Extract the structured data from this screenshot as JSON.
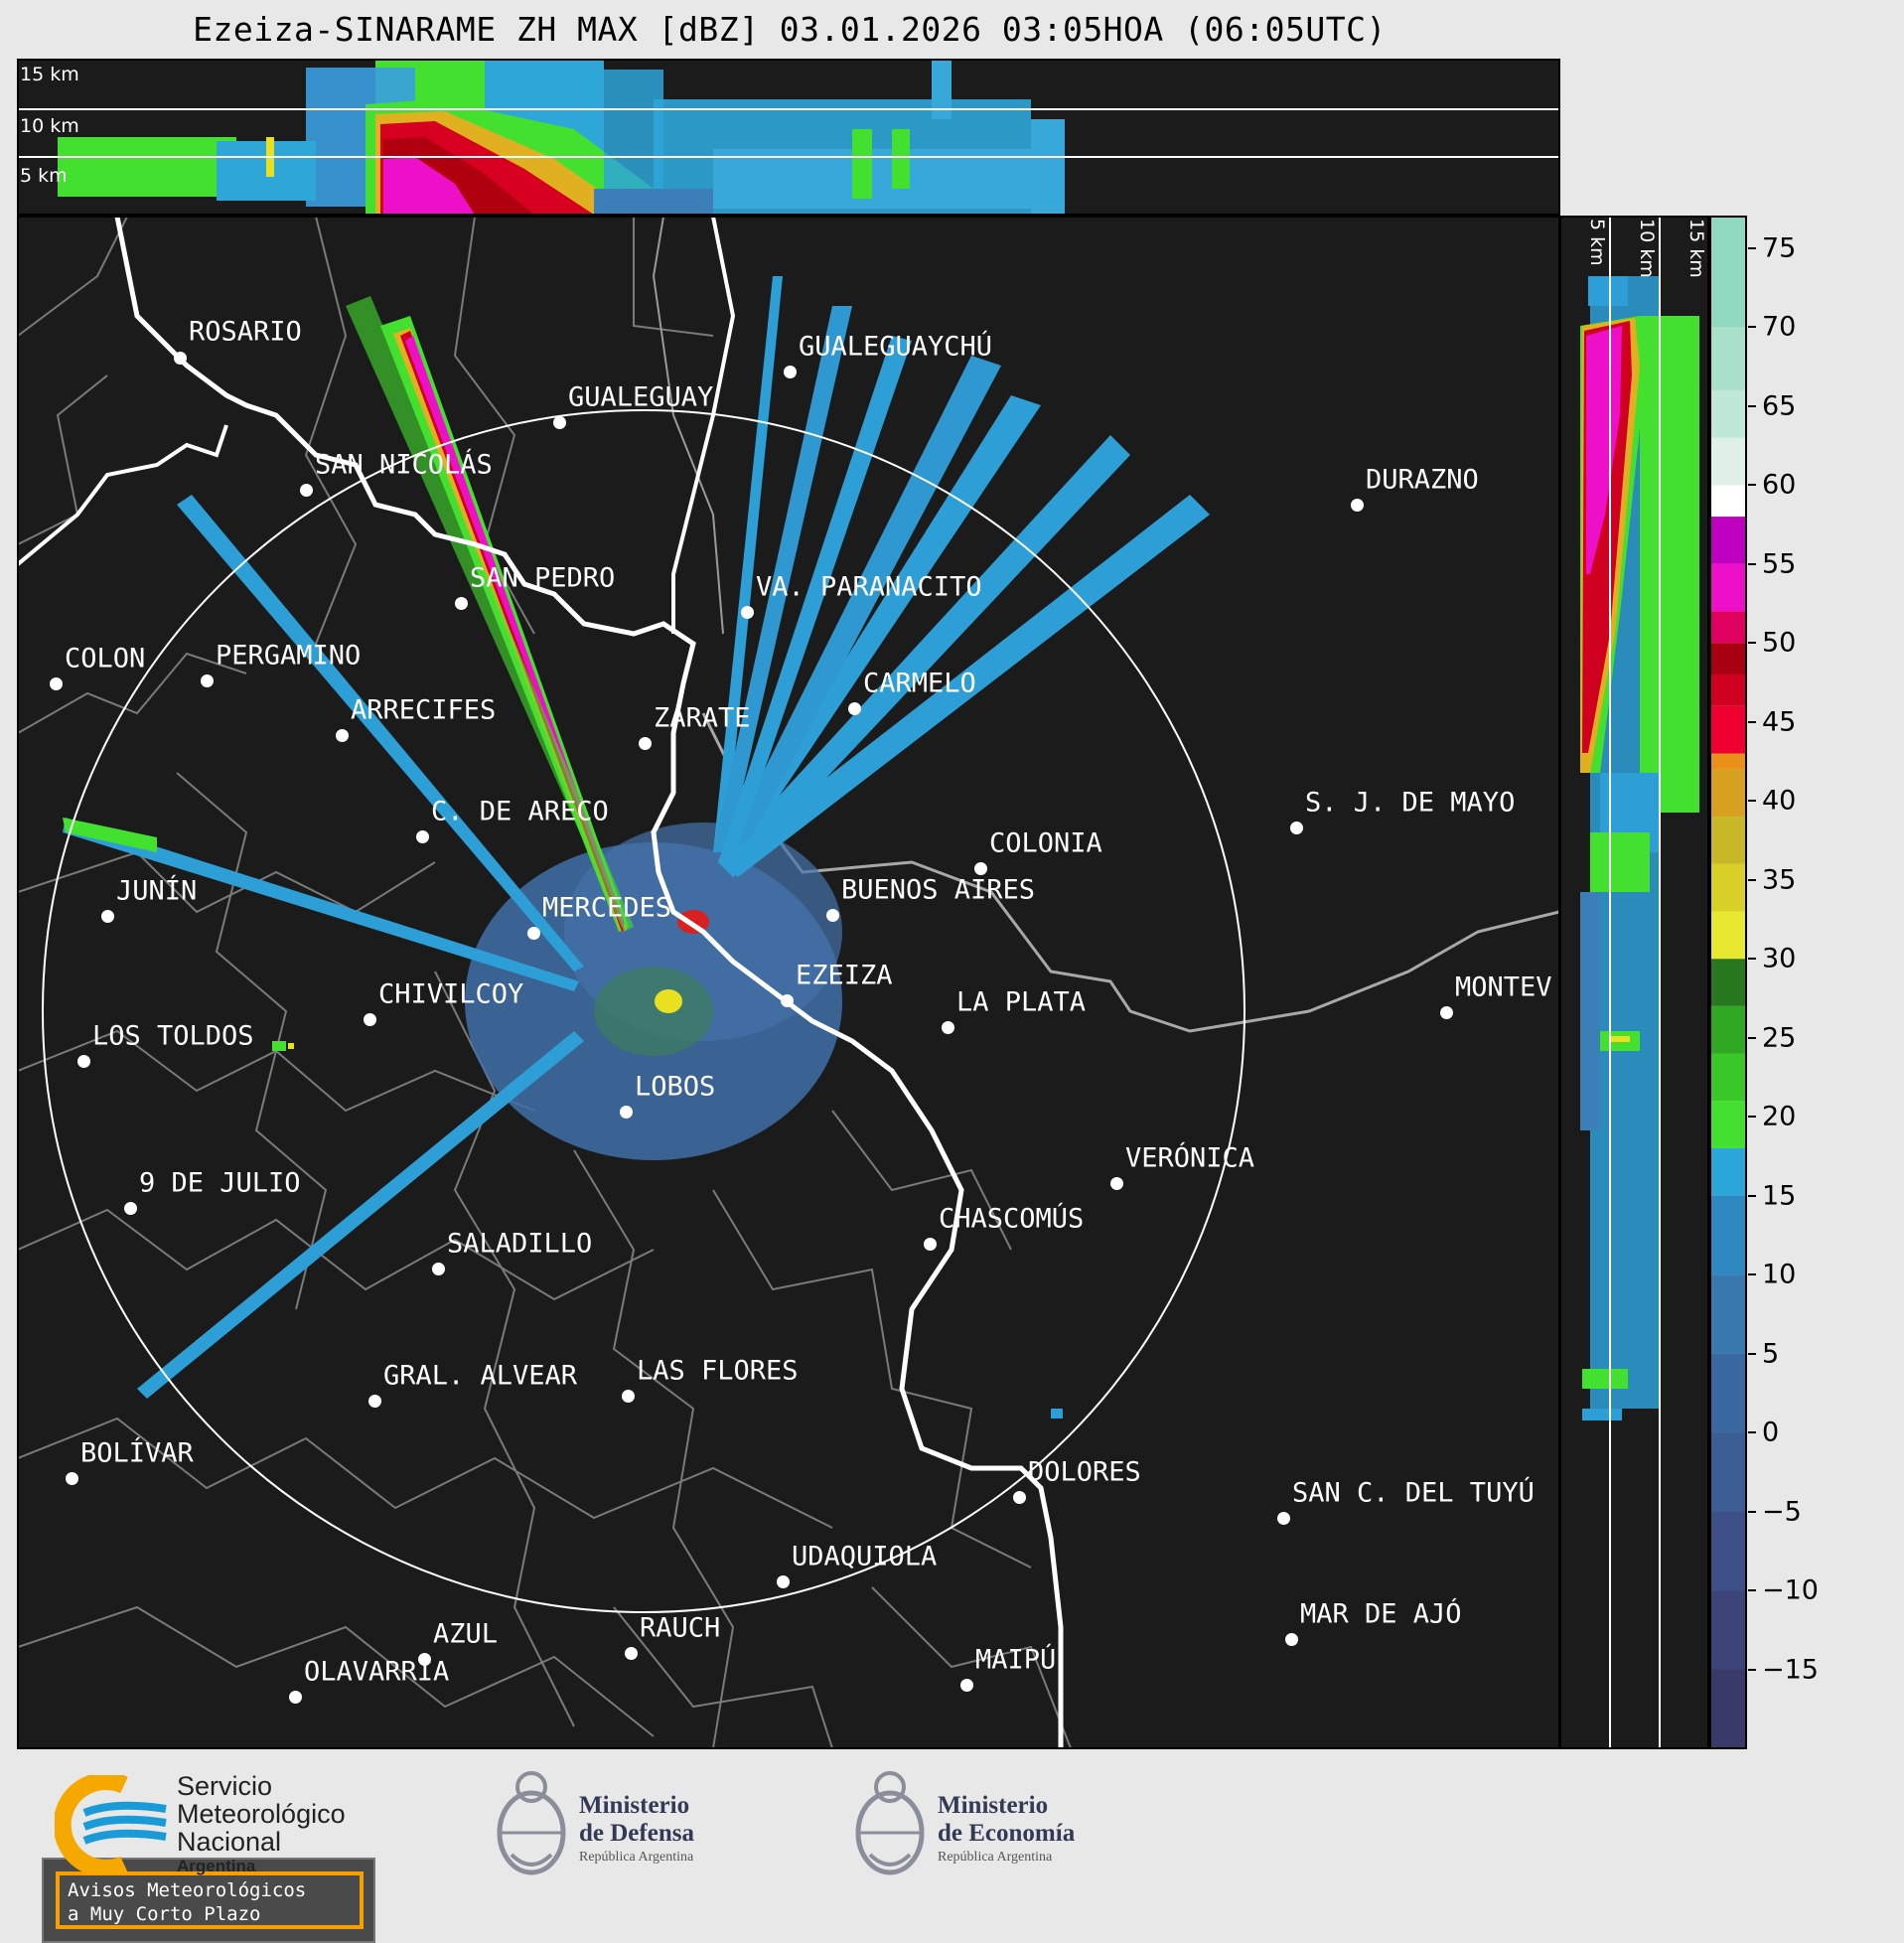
{
  "title": "Ezeiza-SINARAME ZH MAX [dBZ] 03.01.2026 03:05HOA (06:05UTC)",
  "top_panel": {
    "altitude_labels": [
      "15 km",
      "10 km",
      "5 km"
    ]
  },
  "side_panel": {
    "altitude_labels": [
      "5 km",
      "10 km",
      "15 km"
    ]
  },
  "colorbar": {
    "unit": "dBZ",
    "ticks": [
      "75",
      "70",
      "65",
      "60",
      "55",
      "50",
      "45",
      "40",
      "35",
      "30",
      "25",
      "20",
      "15",
      "10",
      "5",
      "0",
      "−5",
      "−10",
      "−15"
    ],
    "tick_values": [
      75,
      70,
      65,
      60,
      55,
      50,
      45,
      40,
      35,
      30,
      25,
      20,
      15,
      10,
      5,
      0,
      -5,
      -10,
      -15
    ],
    "range": [
      -20,
      77
    ]
  },
  "cities": [
    {
      "name": "ROSARIO"
    },
    {
      "name": "GUALEGUAYCHÚ"
    },
    {
      "name": "GUALEGUAY"
    },
    {
      "name": "SAN NICOLÁS"
    },
    {
      "name": "DURAZNO"
    },
    {
      "name": "SAN PEDRO"
    },
    {
      "name": "VA. PARANACITO"
    },
    {
      "name": "COLON"
    },
    {
      "name": "PERGAMINO"
    },
    {
      "name": "CARMELO"
    },
    {
      "name": "ARRECIFES"
    },
    {
      "name": "ZÁRATE"
    },
    {
      "name": "C. DE ARECO"
    },
    {
      "name": "S. J. DE MAYO"
    },
    {
      "name": "COLONIA"
    },
    {
      "name": "JUNÍN"
    },
    {
      "name": "BUENOS AIRES"
    },
    {
      "name": "MERCEDES"
    },
    {
      "name": "EZEIZA"
    },
    {
      "name": "MONTEV"
    },
    {
      "name": "CHIVILCOY"
    },
    {
      "name": "LA PLATA"
    },
    {
      "name": "LOS TOLDOS"
    },
    {
      "name": "LOBOS"
    },
    {
      "name": "VERÓNICA"
    },
    {
      "name": "9 DE JULIO"
    },
    {
      "name": "CHASCOMÚS"
    },
    {
      "name": "SALADILLO"
    },
    {
      "name": "GRAL. ALVEAR"
    },
    {
      "name": "LAS FLORES"
    },
    {
      "name": "BOLÍVAR"
    },
    {
      "name": "DOLORES"
    },
    {
      "name": "SAN C. DEL TUYÚ"
    },
    {
      "name": "UDAQUIOLA"
    },
    {
      "name": "MAR DE AJÓ"
    },
    {
      "name": "AZUL"
    },
    {
      "name": "RAUCH"
    },
    {
      "name": "MAIPÚ"
    },
    {
      "name": "OLAVARRÍA"
    }
  ],
  "warning_box": {
    "line1": "Avisos Meteorológicos",
    "line2": "a Muy Corto Plazo"
  },
  "footer": {
    "smn": {
      "line1": "Servicio",
      "line2": "Meteorológico",
      "line3": "Nacional",
      "line4": "Argentina"
    },
    "defensa": {
      "line1": "Ministerio",
      "line2": "de Defensa",
      "line3": "República Argentina"
    },
    "economia": {
      "line1": "Ministerio",
      "line2": "de Economía",
      "line3": "República Argentina"
    }
  },
  "colors": {
    "panel_bg": "#1b1b1b",
    "page_bg": "#e8e8e8",
    "smn_blue": "#1a9ad6",
    "smn_orange": "#f5a800",
    "warning_border": "#f5a000"
  }
}
